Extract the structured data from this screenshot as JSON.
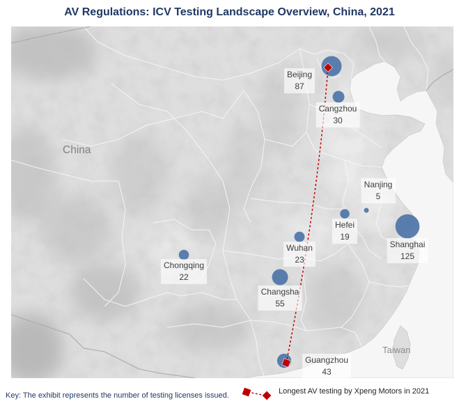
{
  "title": "AV Regulations: ICV Testing Landscape Overview, China, 2021",
  "map": {
    "country_label": "China",
    "island_label": "Taiwan",
    "colors": {
      "land": "#dedede",
      "sea": "#f6f6f6",
      "bubble": "#4f76a9",
      "route": "#c00000",
      "title": "#1f3864"
    }
  },
  "cities": [
    {
      "name": "Beijing",
      "licenses": 87
    },
    {
      "name": "Cangzhou",
      "licenses": 30
    },
    {
      "name": "Nanjing",
      "licenses": 5
    },
    {
      "name": "Hefei",
      "licenses": 19
    },
    {
      "name": "Shanghai",
      "licenses": 125
    },
    {
      "name": "Wuhan",
      "licenses": 23
    },
    {
      "name": "Chongqing",
      "licenses": 22
    },
    {
      "name": "Changsha",
      "licenses": 55
    },
    {
      "name": "Guangzhou",
      "licenses": 43
    }
  ],
  "route": {
    "marker_icon": "diamond-marker-icon"
  },
  "key": {
    "note": "Key: The exhibit represents the number of testing licenses issued.",
    "route_legend": "Longest AV testing by Xpeng Motors in 2021"
  }
}
